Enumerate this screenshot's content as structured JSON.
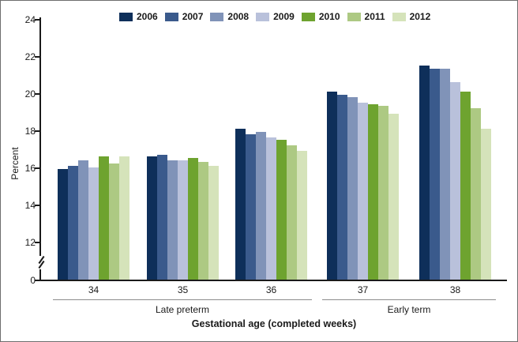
{
  "chart_data": {
    "type": "bar",
    "title": "",
    "xlabel": "Gestational age (completed weeks)",
    "ylabel": "Percent",
    "categories": [
      "34",
      "35",
      "36",
      "37",
      "38"
    ],
    "series": [
      {
        "name": "2006",
        "color": "#0e2f5a",
        "values": [
          15.9,
          16.6,
          18.1,
          20.1,
          21.5
        ]
      },
      {
        "name": "2007",
        "color": "#3a5a8c",
        "values": [
          16.1,
          16.7,
          17.8,
          19.9,
          21.3
        ]
      },
      {
        "name": "2008",
        "color": "#8093b8",
        "values": [
          16.4,
          16.4,
          17.9,
          19.8,
          21.3
        ]
      },
      {
        "name": "2009",
        "color": "#b9c1db",
        "values": [
          16.0,
          16.4,
          17.6,
          19.5,
          20.6
        ]
      },
      {
        "name": "2010",
        "color": "#6ea32f",
        "values": [
          16.6,
          16.5,
          17.5,
          19.4,
          20.1
        ]
      },
      {
        "name": "2011",
        "color": "#adc983",
        "values": [
          16.2,
          16.3,
          17.2,
          19.3,
          19.2
        ]
      },
      {
        "name": "2012",
        "color": "#d5e3ba",
        "values": [
          16.6,
          16.1,
          16.9,
          18.9,
          18.1
        ]
      }
    ],
    "yticks": [
      0,
      12,
      14,
      16,
      18,
      20,
      22,
      24
    ],
    "ylim": [
      0,
      24
    ],
    "axis_break_between": [
      0,
      12
    ],
    "grid": false,
    "legend_position": "top",
    "category_groups": [
      {
        "label": "Late preterm",
        "categories": [
          "34",
          "35",
          "36"
        ]
      },
      {
        "label": "Early term",
        "categories": [
          "37",
          "38"
        ]
      }
    ]
  }
}
